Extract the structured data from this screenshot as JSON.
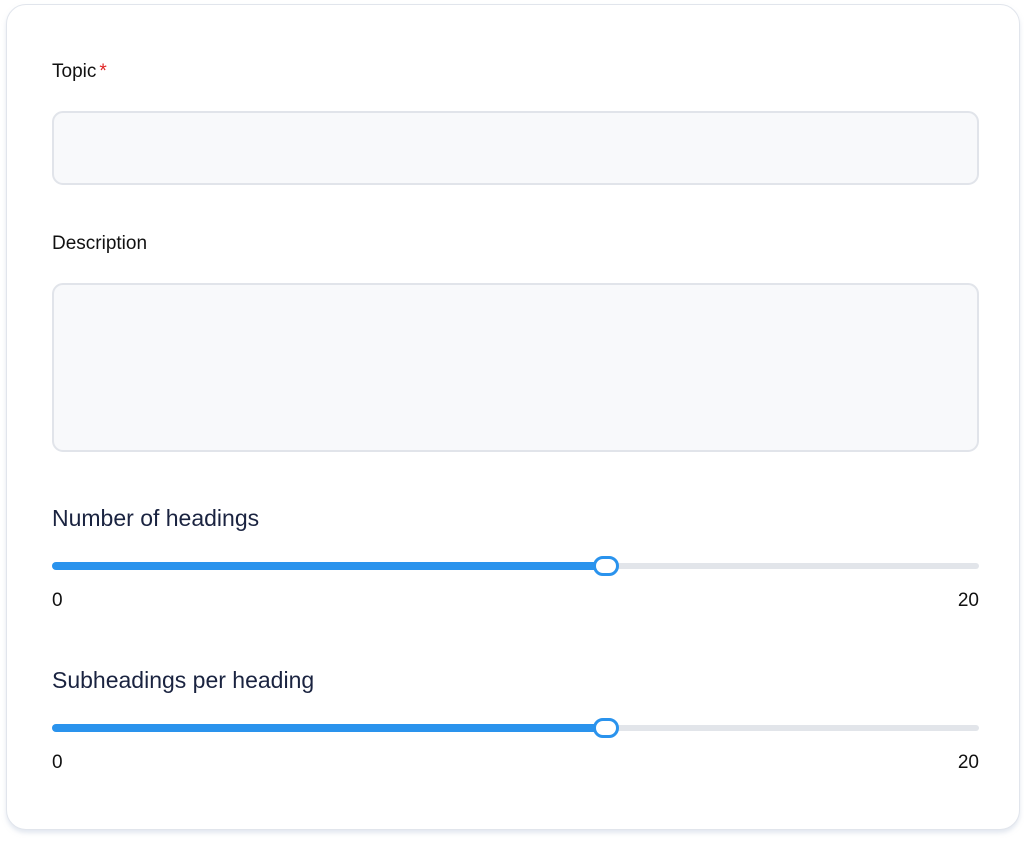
{
  "form": {
    "topic": {
      "label": "Topic",
      "required_mark": "*",
      "value": "",
      "placeholder": ""
    },
    "description": {
      "label": "Description",
      "value": "",
      "placeholder": ""
    },
    "sliders": [
      {
        "label": "Number of headings",
        "min": 0,
        "max": 20,
        "value": 12,
        "min_label": "0",
        "max_label": "20"
      },
      {
        "label": "Subheadings per heading",
        "min": 0,
        "max": 20,
        "value": 12,
        "min_label": "0",
        "max_label": "20"
      }
    ]
  },
  "colors": {
    "accent": "#2a93ed",
    "required": "#e02424",
    "track": "#e2e5ea"
  }
}
